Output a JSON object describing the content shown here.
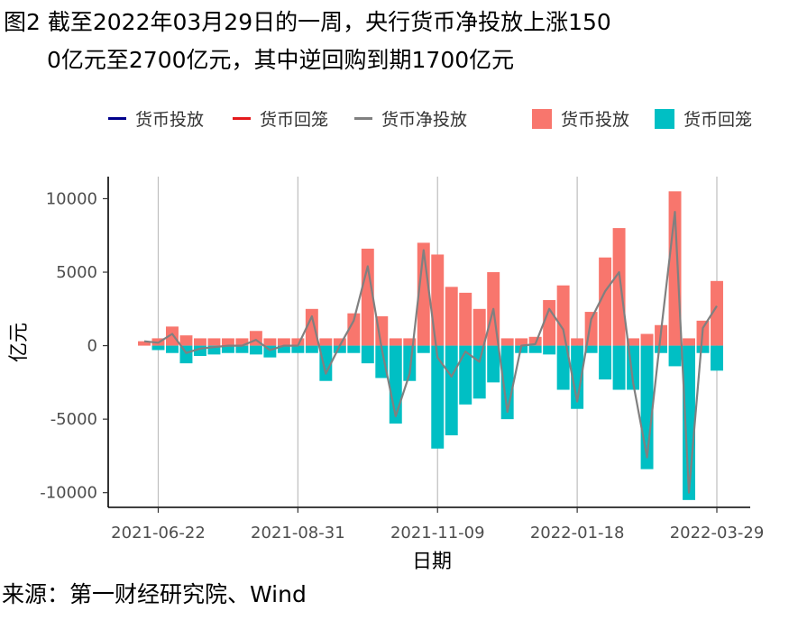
{
  "title": {
    "line1": "图2 截至2022年03月29日的一周，央行货币净投放上涨150",
    "line2": "0亿元至2700亿元，其中逆回购到期1700亿元"
  },
  "source": "来源：第一财经研究院、Wind",
  "colors": {
    "inject_bar": "#F8766D",
    "withdraw_bar": "#00BFC4",
    "net_line": "#808080",
    "inject_line_legend": "#00008B",
    "withdraw_line_legend": "#E41A1C",
    "grid": "#BEBEBE"
  },
  "chart_data": {
    "type": "bar",
    "xlabel": "日期",
    "ylabel": "亿元",
    "ylim": [
      -11000,
      11500
    ],
    "yticks": [
      -10000,
      -5000,
      0,
      5000,
      10000
    ],
    "xticks": [
      "2021-06-22",
      "2021-08-31",
      "2021-11-09",
      "2022-01-18",
      "2022-03-29"
    ],
    "grid": "vertical major lines",
    "legend_position": "top",
    "legend": {
      "line_entries": [
        "货币投放",
        "货币回笼",
        "货币净投放"
      ],
      "bar_entries": [
        "货币投放",
        "货币回笼"
      ]
    },
    "weeks": [
      "2021-06-15",
      "2021-06-22",
      "2021-06-29",
      "2021-07-06",
      "2021-07-13",
      "2021-07-20",
      "2021-07-27",
      "2021-08-03",
      "2021-08-10",
      "2021-08-17",
      "2021-08-24",
      "2021-08-31",
      "2021-09-07",
      "2021-09-14",
      "2021-09-21",
      "2021-09-28",
      "2021-10-05",
      "2021-10-12",
      "2021-10-19",
      "2021-10-26",
      "2021-11-02",
      "2021-11-09",
      "2021-11-16",
      "2021-11-23",
      "2021-11-30",
      "2021-12-07",
      "2021-12-14",
      "2021-12-21",
      "2021-12-28",
      "2022-01-04",
      "2022-01-11",
      "2022-01-18",
      "2022-01-25",
      "2022-02-01",
      "2022-02-08",
      "2022-02-15",
      "2022-02-22",
      "2022-03-01",
      "2022-03-08",
      "2022-03-15",
      "2022-03-22",
      "2022-03-29"
    ],
    "series": [
      {
        "name": "货币投放",
        "values": [
          300,
          500,
          1300,
          700,
          500,
          500,
          500,
          500,
          1000,
          500,
          500,
          500,
          2500,
          500,
          500,
          2200,
          6600,
          2000,
          500,
          500,
          7000,
          6200,
          4000,
          3600,
          2500,
          5000,
          500,
          500,
          600,
          3100,
          4100,
          500,
          2300,
          6000,
          8000,
          500,
          800,
          1400,
          10500,
          500,
          1700,
          4400
        ]
      },
      {
        "name": "货币回笼",
        "values": [
          0,
          -300,
          -500,
          -1200,
          -700,
          -600,
          -500,
          -500,
          -600,
          -800,
          -500,
          -500,
          -500,
          -2400,
          -500,
          -500,
          -1200,
          -2200,
          -5300,
          -2400,
          -500,
          -7000,
          -6100,
          -4000,
          -3600,
          -2500,
          -5000,
          -500,
          -500,
          -600,
          -3000,
          -4300,
          -500,
          -2300,
          -3000,
          -3000,
          -8400,
          -500,
          -1400,
          -10500,
          -500,
          -1700
        ]
      },
      {
        "name": "货币净投放",
        "values": [
          300,
          200,
          800,
          -500,
          -200,
          -100,
          0,
          0,
          400,
          -300,
          0,
          0,
          2000,
          -1900,
          0,
          1700,
          5400,
          -200,
          -4800,
          -1900,
          6500,
          -800,
          -2100,
          -400,
          -1100,
          2500,
          -4500,
          0,
          100,
          2500,
          1100,
          -3800,
          1800,
          3700,
          5000,
          -2500,
          -7600,
          900,
          9100,
          -10000,
          1200,
          2700
        ]
      }
    ]
  }
}
